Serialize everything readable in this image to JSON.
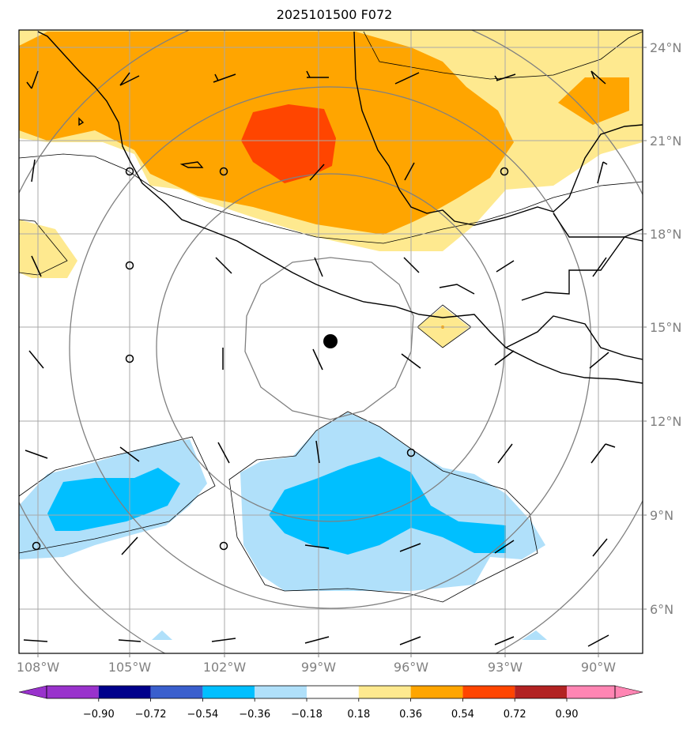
{
  "title": "2025101500 F072",
  "map": {
    "lon_labels": [
      "108°W",
      "105°W",
      "102°W",
      "99°W",
      "96°W",
      "93°W",
      "90°W"
    ],
    "lat_labels": [
      "24°N",
      "21°N",
      "18°N",
      "15°N",
      "12°N",
      "9°N",
      "6°N"
    ],
    "storm_center": {
      "lon": -98.6,
      "lat": 14.6
    },
    "range_rings_deg": [
      2.7,
      5.5,
      8.3
    ],
    "contour_fill_colors": {
      "positive_low": "#fee98f",
      "positive_mid": "#ffa500",
      "positive_high": "#ff4500",
      "negative_low": "#b0e0fa",
      "negative_mid": "#00bfff"
    }
  },
  "colorbar": {
    "levels": [
      "−0.90",
      "−0.72",
      "−0.54",
      "−0.36",
      "−0.18",
      "0.18",
      "0.36",
      "0.54",
      "0.72",
      "0.90"
    ],
    "colors": [
      "#9932cc",
      "#00008b",
      "#3a5fcd",
      "#00bfff",
      "#b0e0fa",
      "#ffffff",
      "#fee98f",
      "#ffa500",
      "#ff4500",
      "#b22222",
      "#ff85b3"
    ]
  }
}
